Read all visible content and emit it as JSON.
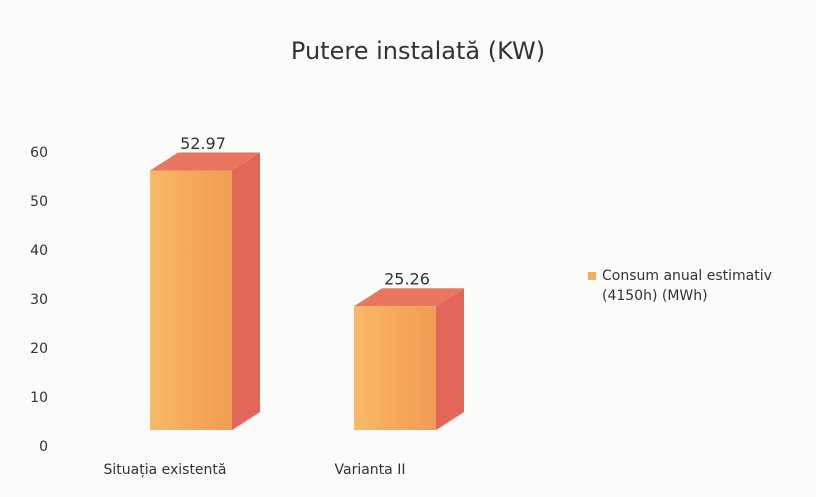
{
  "chart_data": {
    "type": "bar3d",
    "title": "Putere instalată (KW)",
    "categories": [
      "Situația existentă",
      "Varianta II"
    ],
    "series": [
      {
        "name": "Consum anual estimativ (4150h) (MWh)",
        "color": "#f6ab5c",
        "values": [
          52.97,
          25.26
        ]
      }
    ],
    "ylim": [
      0,
      60
    ],
    "yticks": [
      0,
      10,
      20,
      30,
      40,
      50,
      60
    ],
    "grid": false,
    "legend": "right"
  }
}
